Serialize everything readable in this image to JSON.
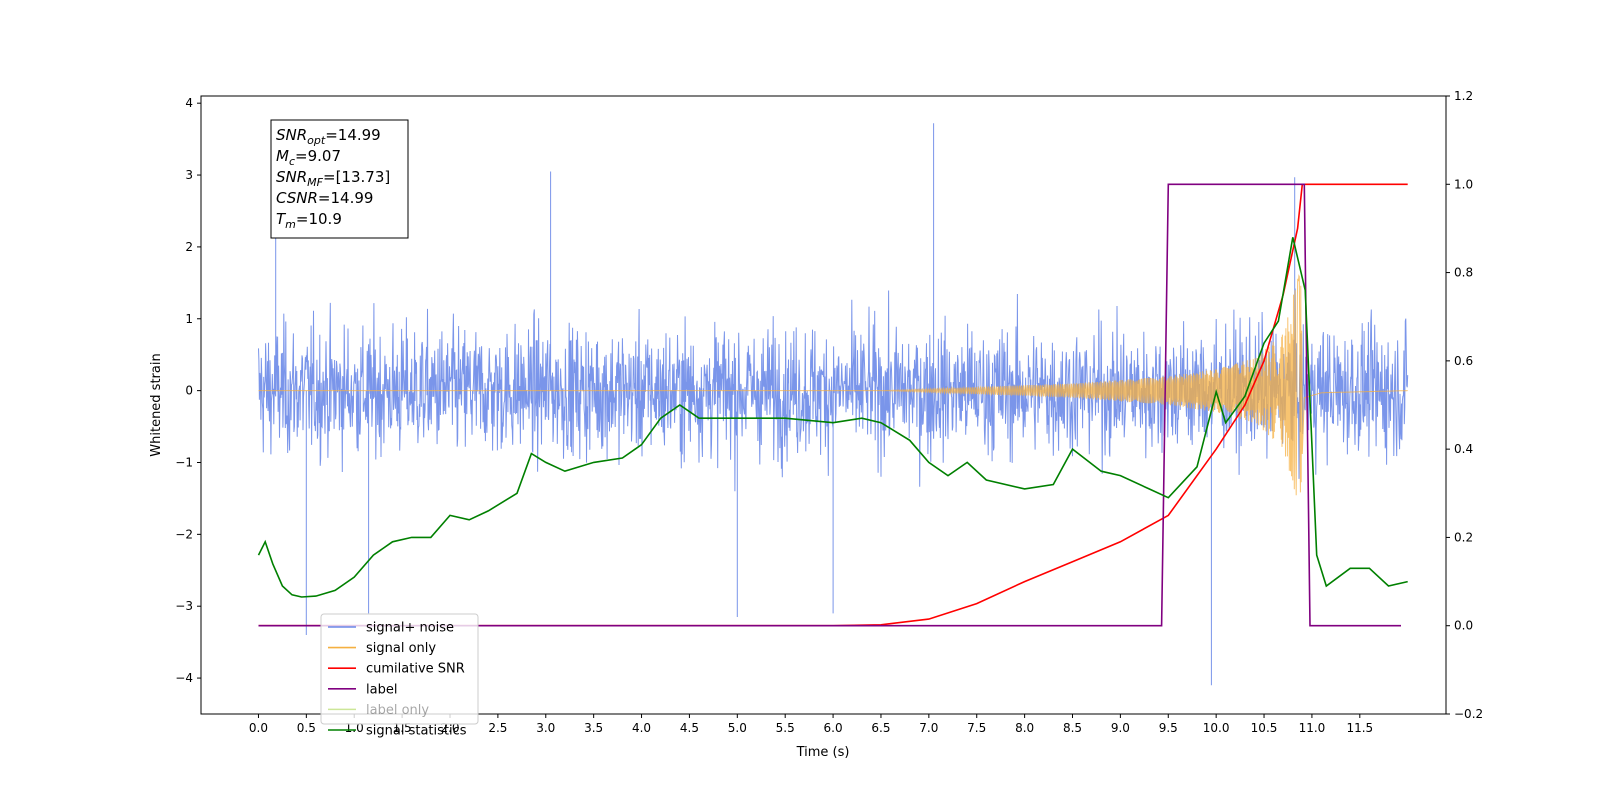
{
  "chart_data": {
    "type": "line",
    "xlabel": "Time (s)",
    "ylabel": "Whitened strain",
    "xlim": [
      -0.6,
      12.4
    ],
    "ylim": [
      -4.5,
      4.1
    ],
    "y2lim": [
      -0.2,
      1.2
    ],
    "x_ticks": [
      0.0,
      0.5,
      1.0,
      1.5,
      2.0,
      2.5,
      3.0,
      3.5,
      4.0,
      4.5,
      5.0,
      5.5,
      6.0,
      6.5,
      7.0,
      7.5,
      8.0,
      8.5,
      9.0,
      9.5,
      10.0,
      10.5,
      11.0,
      11.5
    ],
    "x_tick_labels": [
      "0.0",
      "0.5",
      "1.0",
      "1.5",
      "2.0",
      "2.5",
      "3.0",
      "3.5",
      "4.0",
      "4.5",
      "5.0",
      "5.5",
      "6.0",
      "6.5",
      "7.0",
      "7.5",
      "8.0",
      "8.5",
      "9.0",
      "9.5",
      "10.0",
      "10.5",
      "11.0",
      "11.5"
    ],
    "y_ticks": [
      -4,
      -3,
      -2,
      -1,
      0,
      1,
      2,
      3,
      4
    ],
    "y_tick_labels": [
      "−4",
      "−3",
      "−2",
      "−1",
      "0",
      "1",
      "2",
      "3",
      "4"
    ],
    "y2_ticks": [
      -0.2,
      0.0,
      0.2,
      0.4,
      0.6,
      0.8,
      1.0,
      1.2
    ],
    "y2_tick_labels": [
      "−0.2",
      "0.0",
      "0.2",
      "0.4",
      "0.6",
      "0.8",
      "1.0",
      "1.2"
    ],
    "legend_position": "lower-left",
    "grid": false,
    "series": [
      {
        "name": "signal+ noise",
        "color": "#6b89e8",
        "axis": "left",
        "kind": "noise",
        "x_range": [
          0.0,
          12.0
        ],
        "amplitude_std": 0.75,
        "spikes": [
          [
            0.18,
            2.2
          ],
          [
            0.5,
            -3.4
          ],
          [
            1.15,
            -3.1
          ],
          [
            3.05,
            3.05
          ],
          [
            5.0,
            -3.15
          ],
          [
            6.0,
            -3.1
          ],
          [
            7.05,
            3.72
          ],
          [
            9.95,
            -4.1
          ],
          [
            10.82,
            2.97
          ]
        ]
      },
      {
        "name": "signal only",
        "color": "#f5b041",
        "axis": "left",
        "kind": "chirp",
        "x_range": [
          0.0,
          12.0
        ],
        "merger_time": 10.9,
        "envelope": [
          [
            6.5,
            0.0
          ],
          [
            7.5,
            0.05
          ],
          [
            8.5,
            0.1
          ],
          [
            9.5,
            0.2
          ],
          [
            10.0,
            0.3
          ],
          [
            10.4,
            0.45
          ],
          [
            10.7,
            0.8
          ],
          [
            10.88,
            1.7
          ],
          [
            10.92,
            0.1
          ],
          [
            11.1,
            0.03
          ],
          [
            12.0,
            0.0
          ]
        ]
      },
      {
        "name": "cumilative SNR",
        "color": "#ff0000",
        "axis": "right",
        "points": [
          [
            0.0,
            0.0
          ],
          [
            6.0,
            0.0
          ],
          [
            6.5,
            0.002
          ],
          [
            7.0,
            0.015
          ],
          [
            7.5,
            0.05
          ],
          [
            8.0,
            0.1
          ],
          [
            8.5,
            0.145
          ],
          [
            9.0,
            0.19
          ],
          [
            9.5,
            0.25
          ],
          [
            10.0,
            0.4
          ],
          [
            10.3,
            0.5
          ],
          [
            10.5,
            0.6
          ],
          [
            10.7,
            0.75
          ],
          [
            10.85,
            0.9
          ],
          [
            10.9,
            1.0
          ],
          [
            11.0,
            1.0
          ],
          [
            12.0,
            1.0
          ]
        ]
      },
      {
        "name": "label",
        "color": "#800080",
        "axis": "right",
        "points": [
          [
            0.0,
            0.0
          ],
          [
            9.43,
            0.0
          ],
          [
            9.5,
            1.0
          ],
          [
            10.92,
            1.0
          ],
          [
            10.98,
            0.0
          ],
          [
            11.93,
            0.0
          ]
        ]
      },
      {
        "name": "label only",
        "color": "#9acd32",
        "axis": "right",
        "hidden": true,
        "points": []
      },
      {
        "name": "signal statistics",
        "color": "#008000",
        "axis": "right",
        "points": [
          [
            0.0,
            0.16
          ],
          [
            0.07,
            0.19
          ],
          [
            0.15,
            0.14
          ],
          [
            0.25,
            0.09
          ],
          [
            0.35,
            0.07
          ],
          [
            0.45,
            0.065
          ],
          [
            0.6,
            0.067
          ],
          [
            0.8,
            0.08
          ],
          [
            1.0,
            0.11
          ],
          [
            1.2,
            0.16
          ],
          [
            1.4,
            0.19
          ],
          [
            1.6,
            0.2
          ],
          [
            1.8,
            0.2
          ],
          [
            2.0,
            0.25
          ],
          [
            2.2,
            0.24
          ],
          [
            2.4,
            0.26
          ],
          [
            2.7,
            0.3
          ],
          [
            2.85,
            0.39
          ],
          [
            3.0,
            0.37
          ],
          [
            3.2,
            0.35
          ],
          [
            3.5,
            0.37
          ],
          [
            3.8,
            0.38
          ],
          [
            4.0,
            0.41
          ],
          [
            4.2,
            0.47
          ],
          [
            4.4,
            0.5
          ],
          [
            4.6,
            0.47
          ],
          [
            5.0,
            0.47
          ],
          [
            5.5,
            0.47
          ],
          [
            6.0,
            0.46
          ],
          [
            6.3,
            0.47
          ],
          [
            6.5,
            0.46
          ],
          [
            6.8,
            0.42
          ],
          [
            7.0,
            0.37
          ],
          [
            7.2,
            0.34
          ],
          [
            7.4,
            0.37
          ],
          [
            7.6,
            0.33
          ],
          [
            8.0,
            0.31
          ],
          [
            8.3,
            0.32
          ],
          [
            8.5,
            0.4
          ],
          [
            8.8,
            0.35
          ],
          [
            9.0,
            0.34
          ],
          [
            9.3,
            0.31
          ],
          [
            9.5,
            0.29
          ],
          [
            9.8,
            0.36
          ],
          [
            10.0,
            0.53
          ],
          [
            10.1,
            0.46
          ],
          [
            10.3,
            0.52
          ],
          [
            10.5,
            0.64
          ],
          [
            10.65,
            0.69
          ],
          [
            10.8,
            0.88
          ],
          [
            10.93,
            0.76
          ],
          [
            11.05,
            0.16
          ],
          [
            11.15,
            0.09
          ],
          [
            11.4,
            0.13
          ],
          [
            11.6,
            0.13
          ],
          [
            11.8,
            0.09
          ],
          [
            12.0,
            0.1
          ]
        ]
      }
    ],
    "annotation_lines": [
      {
        "name": "SNR",
        "sub": "opt",
        "value": "=14.99"
      },
      {
        "name": "M",
        "sub": "c",
        "value": "=9.07"
      },
      {
        "name": "SNR",
        "sub": "MF",
        "value": "=[13.73]"
      },
      {
        "name": "CSNR",
        "sub": "",
        "value": "=14.99"
      },
      {
        "name": "T",
        "sub": "m",
        "value": "=10.9"
      }
    ]
  }
}
